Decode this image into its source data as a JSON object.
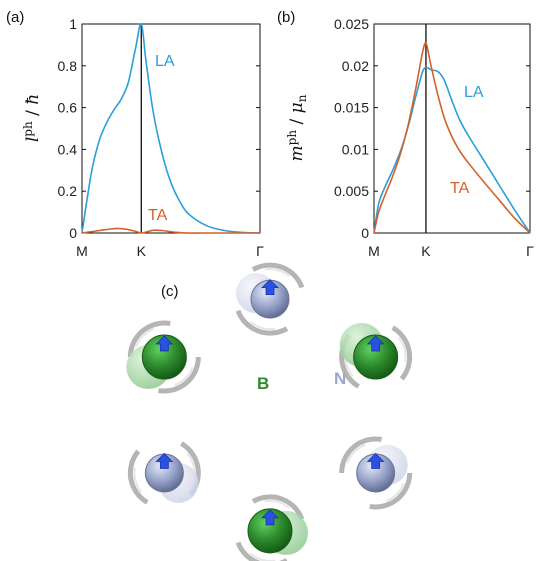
{
  "chart_data": [
    {
      "type": "line",
      "panel_label": "(a)",
      "ylabel_main": "l",
      "ylabel_sup": "ph",
      "ylabel_sep": " / ",
      "ylabel_unit": "ħ",
      "xticks": [
        "M",
        "K",
        "Γ"
      ],
      "yticks": [
        "0",
        "0.2",
        "0.4",
        "0.6",
        "0.8",
        "1"
      ],
      "ylim": [
        0,
        1
      ],
      "xlim": [
        0,
        1
      ],
      "grid": false,
      "vertical_line_at": 0.333,
      "series": [
        {
          "name": "LA",
          "color": "#2a9fd8",
          "x": [
            0,
            0.03,
            0.06,
            0.1,
            0.14,
            0.18,
            0.22,
            0.26,
            0.3,
            0.333,
            0.36,
            0.4,
            0.45,
            0.5,
            0.55,
            0.6,
            0.7,
            0.8,
            0.9,
            1.0
          ],
          "y": [
            0,
            0.17,
            0.32,
            0.45,
            0.53,
            0.59,
            0.64,
            0.72,
            0.88,
            1.0,
            0.82,
            0.58,
            0.38,
            0.24,
            0.15,
            0.09,
            0.035,
            0.012,
            0.003,
            0
          ]
        },
        {
          "name": "TA",
          "color": "#d4612b",
          "x": [
            0,
            0.05,
            0.1,
            0.15,
            0.2,
            0.25,
            0.3,
            0.333,
            0.37,
            0.4,
            0.45,
            0.5,
            0.55,
            0.6,
            0.7,
            1.0
          ],
          "y": [
            0,
            0.006,
            0.012,
            0.018,
            0.022,
            0.018,
            0.008,
            0,
            0.007,
            0.013,
            0.012,
            0.006,
            0.002,
            0,
            0,
            0
          ]
        }
      ]
    },
    {
      "type": "line",
      "panel_label": "(b)",
      "ylabel_main": "m",
      "ylabel_sup": "ph",
      "ylabel_sep": " / ",
      "ylabel_unit": "μ",
      "ylabel_unit_sub": "n",
      "xticks": [
        "M",
        "K",
        "Γ"
      ],
      "yticks": [
        "0",
        "0.005",
        "0.01",
        "0.015",
        "0.02",
        "0.025"
      ],
      "ylim": [
        0,
        0.025
      ],
      "xlim": [
        0,
        1
      ],
      "grid": false,
      "vertical_line_at": 0.333,
      "series": [
        {
          "name": "LA",
          "color": "#2a9fd8",
          "x": [
            0,
            0.03,
            0.07,
            0.12,
            0.17,
            0.22,
            0.27,
            0.31,
            0.333,
            0.37,
            0.41,
            0.45,
            0.5,
            0.55,
            0.6,
            0.7,
            0.8,
            0.9,
            1.0
          ],
          "y": [
            0,
            0.0035,
            0.0055,
            0.0075,
            0.0098,
            0.0128,
            0.0165,
            0.0192,
            0.0198,
            0.0195,
            0.0193,
            0.0183,
            0.0158,
            0.0135,
            0.0118,
            0.0088,
            0.0058,
            0.0028,
            0
          ]
        },
        {
          "name": "TA",
          "color": "#d4612b",
          "x": [
            0,
            0.03,
            0.07,
            0.12,
            0.17,
            0.22,
            0.27,
            0.31,
            0.333,
            0.36,
            0.4,
            0.45,
            0.5,
            0.55,
            0.6,
            0.7,
            0.8,
            0.9,
            1.0
          ],
          "y": [
            0,
            0.0025,
            0.0045,
            0.0068,
            0.0095,
            0.013,
            0.0175,
            0.0215,
            0.0227,
            0.0205,
            0.0172,
            0.0138,
            0.0115,
            0.0098,
            0.0085,
            0.0062,
            0.004,
            0.0018,
            0
          ]
        }
      ]
    }
  ],
  "diagram": {
    "panel_label": "(c)",
    "label_b": "B",
    "label_n": "N",
    "color_b": "#2e8b2e",
    "color_n": "#9aa6cc",
    "color_arrow": "#2a52e0",
    "color_arc": "#a8a8a8"
  }
}
